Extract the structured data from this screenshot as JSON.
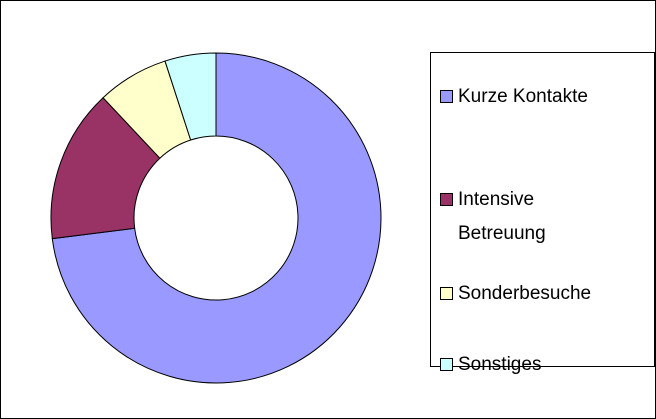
{
  "chart_data": {
    "type": "donut",
    "categories": [
      "Kurze Kontakte",
      "Intensive Betreuung",
      "Sonderbesuche",
      "Sonstiges"
    ],
    "values": [
      73,
      15,
      7,
      5
    ],
    "colors": [
      "#9999ff",
      "#993366",
      "#ffffcc",
      "#ccffff"
    ]
  }
}
